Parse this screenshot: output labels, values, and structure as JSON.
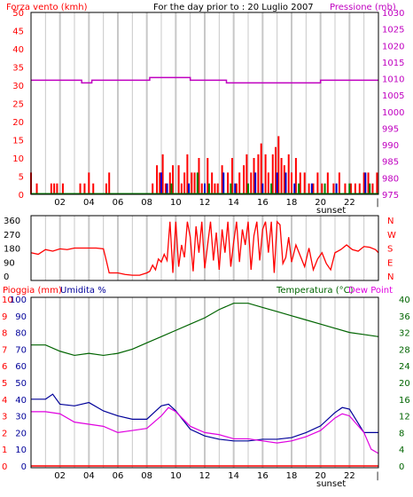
{
  "header": {
    "wind_label": "Forza vento (kmh)",
    "date_label": "For the day prior to : 20 Luglio 2007",
    "pressure_label": "Pressione (mb)"
  },
  "colors": {
    "wind": "#ff0000",
    "pressure": "#c000c0",
    "temperature": "#006400",
    "rain": "#ff0000",
    "humidity": "#000099",
    "dewpoint": "#e000e0",
    "grid": "#c8c8c8",
    "frame": "#000000"
  },
  "x_axis": {
    "tick_labels": [
      "02",
      "04",
      "06",
      "08",
      "10",
      "12",
      "14",
      "16",
      "18",
      "20",
      "22"
    ],
    "sunset_label": "sunset"
  },
  "chart_data": [
    {
      "type": "bar",
      "name": "wind",
      "title": "For the day prior to : 20 Luglio 2007",
      "ylabel_left": "Forza vento (kmh)",
      "ylabel_right": "Pressione (mb)",
      "xlim": [
        0,
        24
      ],
      "ylim_left": [
        0,
        50
      ],
      "ylim_right": [
        975,
        1030
      ],
      "left_ticks": [
        0,
        5,
        10,
        15,
        20,
        25,
        30,
        35,
        40,
        45,
        50
      ],
      "right_ticks": [
        975,
        980,
        985,
        990,
        995,
        1000,
        1005,
        1010,
        1015,
        1020,
        1025,
        1030
      ],
      "wind_speed": {
        "x": [
          0.0,
          0.4,
          1.4,
          1.6,
          1.8,
          2.2,
          3.4,
          3.7,
          4.0,
          4.3,
          5.2,
          5.4,
          8.4,
          8.7,
          8.9,
          9.1,
          9.3,
          9.6,
          9.8,
          10.2,
          10.4,
          10.6,
          10.8,
          11.1,
          11.3,
          11.6,
          11.8,
          12.2,
          12.5,
          12.7,
          12.9,
          13.2,
          13.6,
          13.9,
          14.2,
          14.4,
          14.7,
          14.9,
          15.2,
          15.4,
          15.7,
          15.9,
          16.2,
          16.4,
          16.7,
          16.9,
          17.1,
          17.3,
          17.5,
          17.8,
          18.0,
          18.3,
          18.6,
          18.9,
          19.2,
          19.5,
          19.8,
          20.1,
          20.5,
          20.9,
          21.3,
          21.7,
          22.1,
          22.4,
          22.7,
          23.0,
          23.3,
          23.6,
          23.9
        ],
        "values": [
          6,
          3,
          3,
          3,
          3,
          3,
          3,
          3,
          6,
          3,
          3,
          6,
          3,
          8,
          6,
          11,
          3,
          6,
          8,
          8,
          3,
          6,
          11,
          6,
          6,
          10,
          3,
          10,
          6,
          3,
          3,
          8,
          6,
          10,
          3,
          6,
          8,
          11,
          6,
          10,
          11,
          14,
          11,
          6,
          11,
          13,
          16,
          10,
          8,
          11,
          6,
          10,
          6,
          6,
          3,
          3,
          6,
          3,
          6,
          3,
          6,
          3,
          3,
          3,
          3,
          6,
          6,
          3,
          6
        ]
      },
      "wind_gust_marks": {
        "blue_x": [
          9.0,
          9.4,
          10.9,
          12.0,
          13.3,
          14.1,
          15.5,
          16.0,
          17.0,
          17.6,
          18.2,
          19.4,
          21.1,
          23.1
        ],
        "blue_values": [
          6,
          3,
          3,
          3,
          6,
          3,
          6,
          3,
          6,
          6,
          3,
          3,
          3,
          6
        ],
        "green_x": [
          9.7,
          11.5,
          12.3,
          13.8,
          15.0,
          16.6,
          18.5,
          20.3,
          22.0,
          23.4
        ],
        "green_values": [
          3,
          6,
          3,
          3,
          3,
          3,
          3,
          3,
          3,
          3
        ]
      },
      "pressure": {
        "x": [
          0.0,
          3.4,
          3.5,
          3.9,
          4.2,
          6.0,
          8.2,
          10.0,
          11.0,
          13.5,
          16.0,
          18.0,
          20.0,
          22.0,
          24.0
        ],
        "values": [
          1009.5,
          1009.5,
          1008.7,
          1008.7,
          1009.5,
          1009.5,
          1010.3,
          1010.3,
          1009.5,
          1008.7,
          1008.7,
          1008.7,
          1009.5,
          1009.5,
          1009.5
        ]
      }
    },
    {
      "type": "line",
      "name": "wind_direction",
      "xlim": [
        0,
        24
      ],
      "ylim": [
        0,
        360
      ],
      "ticks": [
        0,
        90,
        180,
        270,
        360
      ],
      "compass_labels": [
        "N",
        "W",
        "S",
        "E",
        "N"
      ],
      "x": [
        0.0,
        0.5,
        1.0,
        1.5,
        2.0,
        2.5,
        3.0,
        3.5,
        4.0,
        4.5,
        5.0,
        5.2,
        5.4,
        6.0,
        6.5,
        7.0,
        7.5,
        8.0,
        8.2,
        8.4,
        8.6,
        8.8,
        9.0,
        9.2,
        9.4,
        9.6,
        9.8,
        10.0,
        10.2,
        10.4,
        10.6,
        10.8,
        11.0,
        11.2,
        11.4,
        11.6,
        11.8,
        12.0,
        12.2,
        12.4,
        12.6,
        12.8,
        13.0,
        13.2,
        13.4,
        13.6,
        13.8,
        14.0,
        14.2,
        14.4,
        14.6,
        14.8,
        15.0,
        15.2,
        15.4,
        15.6,
        15.8,
        16.0,
        16.2,
        16.4,
        16.6,
        16.8,
        17.0,
        17.2,
        17.4,
        17.6,
        17.8,
        18.0,
        18.3,
        18.6,
        18.9,
        19.2,
        19.5,
        19.8,
        20.1,
        20.4,
        20.7,
        21.0,
        21.4,
        21.8,
        22.2,
        22.6,
        23.0,
        23.4,
        23.8,
        24.0
      ],
      "values": [
        150,
        140,
        170,
        160,
        175,
        170,
        180,
        180,
        180,
        180,
        175,
        100,
        20,
        20,
        10,
        5,
        5,
        20,
        30,
        70,
        40,
        110,
        90,
        140,
        100,
        350,
        20,
        350,
        60,
        200,
        120,
        350,
        250,
        30,
        320,
        150,
        350,
        50,
        200,
        350,
        100,
        280,
        40,
        300,
        150,
        350,
        60,
        220,
        350,
        90,
        300,
        200,
        350,
        40,
        260,
        350,
        100,
        300,
        350,
        150,
        350,
        20,
        350,
        330,
        80,
        120,
        250,
        90,
        200,
        130,
        60,
        180,
        40,
        110,
        150,
        80,
        40,
        150,
        170,
        200,
        170,
        160,
        190,
        185,
        170,
        150
      ]
    },
    {
      "type": "line",
      "name": "humidity_temperature",
      "ylabel_left_rain": "Pioggia (mm)",
      "ylabel_left_humidity": "Umidita %",
      "ylabel_right_temp": "Temperatura (°C)",
      "ylabel_right_dew": "Dew Point",
      "xlim": [
        0,
        24
      ],
      "rain_ticks": [
        0,
        1,
        2,
        3,
        4,
        5,
        6,
        7,
        8,
        9,
        10
      ],
      "humidity_ticks": [
        0,
        10,
        20,
        30,
        40,
        50,
        60,
        70,
        80,
        90,
        100
      ],
      "temperature_ticks": [
        0,
        4,
        8,
        12,
        16,
        20,
        24,
        28,
        32,
        36,
        40
      ],
      "temperature": {
        "x": [
          0,
          1,
          2,
          3,
          4,
          5,
          6,
          7,
          8,
          9,
          10,
          11,
          12,
          13,
          14,
          15,
          16,
          17,
          18,
          19,
          20,
          21,
          22,
          23,
          24
        ],
        "values": [
          29,
          29,
          27.5,
          26.5,
          27,
          26.5,
          27,
          28,
          29.5,
          31,
          32.5,
          34,
          35.5,
          37.5,
          39,
          39,
          38,
          37,
          36,
          35,
          34,
          33,
          32,
          31.5,
          31
        ]
      },
      "dew_point": {
        "x": [
          0,
          1,
          2,
          3,
          4,
          5,
          6,
          7,
          8,
          9,
          9.5,
          10,
          11,
          12,
          13,
          14,
          15,
          16,
          17,
          18,
          19,
          20,
          21,
          21.5,
          22,
          23,
          23.5,
          24
        ],
        "values": [
          13,
          13,
          12.5,
          10.5,
          10,
          9.5,
          8,
          8.5,
          9,
          12,
          14,
          13,
          9.5,
          8,
          7.5,
          6.5,
          6.5,
          6,
          5.5,
          6,
          7,
          8.5,
          11.5,
          12.5,
          12,
          8,
          4,
          3
        ]
      },
      "humidity": {
        "x": [
          0,
          1,
          1.5,
          2,
          3,
          4,
          5,
          6,
          7,
          8,
          8.5,
          9,
          9.5,
          10,
          11,
          12,
          13,
          14,
          15,
          16,
          17,
          18,
          19,
          20,
          21,
          21.5,
          22,
          23,
          24
        ],
        "values": [
          40,
          40,
          43,
          37,
          36,
          38,
          33,
          30,
          28,
          28,
          32,
          36,
          37,
          33,
          22,
          18,
          16,
          15,
          15,
          16,
          16,
          17,
          20,
          24,
          32,
          35,
          34,
          20,
          20
        ]
      },
      "rain": {
        "x": [
          0,
          24
        ],
        "values": [
          0,
          0
        ]
      }
    }
  ]
}
